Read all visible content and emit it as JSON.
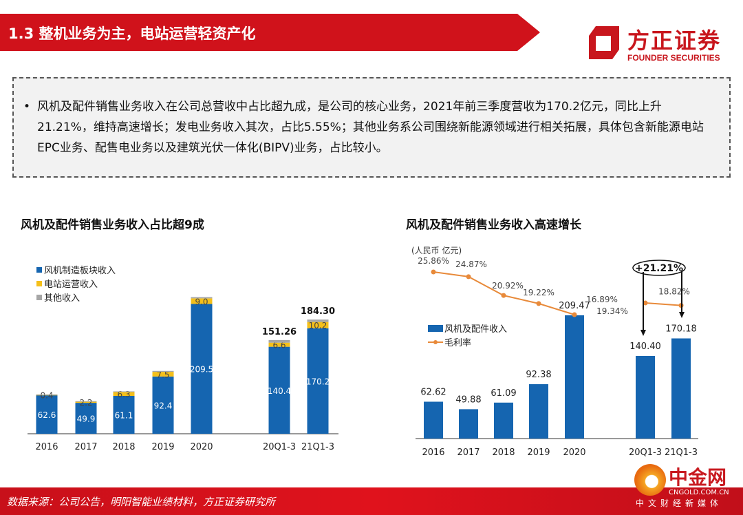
{
  "header": {
    "title": "1.3 整机业务为主，电站运营轻资产化",
    "logo_cn": "方正证券",
    "logo_en": "FOUNDER SECURITIES"
  },
  "summary": {
    "bullet": "•",
    "text": "风机及配件销售业务收入在公司总营收中占比超九成，是公司的核心业务，2021年前三季度营收为170.2亿元，同比上升21.21%，维持高速增长；发电业务收入其次，占比5.55%；其他业务系公司围绕新能源领域进行相关拓展，具体包含新能源电站EPC业务、配售电业务以及建筑光伏一体化(BIPV)业务，占比较小。"
  },
  "footer": {
    "source": "数据来源：公司公告，明阳智能业绩材料，方正证券研究所"
  },
  "watermark": {
    "name": "中金网",
    "url": "CNGOLD.COM.CN",
    "slogan": "中文财经新媒体"
  },
  "colors": {
    "blue": "#1565b0",
    "yellow": "#f5c01a",
    "gray": "#a6a6a6",
    "orange": "#e88a3a",
    "red": "#d0121b"
  },
  "chart_data": [
    {
      "type": "bar",
      "stacked": true,
      "title": "风机及配件销售业务收入占比超9成",
      "categories": [
        "2016",
        "2017",
        "2018",
        "2019",
        "2020",
        "20Q1-3",
        "21Q1-3"
      ],
      "series": [
        {
          "name": "风机制造板块收入",
          "color": "#1565b0",
          "values": [
            62.6,
            49.9,
            61.1,
            92.4,
            209.5,
            140.4,
            170.2
          ],
          "labels": [
            "62.6",
            "49.9",
            "61.1",
            "92.4",
            "209.5",
            "140.4",
            "170.2"
          ]
        },
        {
          "name": "电站运营收入",
          "color": "#f5c01a",
          "values": [
            0.4,
            2.2,
            6.3,
            7.5,
            9.0,
            6.6,
            10.2
          ],
          "labels": [
            "0.4",
            "2.2",
            "6.3",
            "7.5",
            "9.0",
            "6.6",
            "10.2"
          ]
        },
        {
          "name": "其他收入",
          "color": "#a6a6a6",
          "values": [
            0.5,
            0.5,
            1.0,
            1.5,
            2.0,
            4.26,
            3.9
          ]
        }
      ],
      "totals": [
        null,
        null,
        null,
        null,
        null,
        "151.26",
        "184.30"
      ],
      "legend": "top-left",
      "grid": false
    },
    {
      "type": "bar+line",
      "title": "风机及配件销售业务收入高速增长",
      "unit": "(人民币 亿元)",
      "categories": [
        "2016",
        "2017",
        "2018",
        "2019",
        "2020",
        "20Q1-3",
        "21Q1-3"
      ],
      "series": [
        {
          "name": "风机及配件收入",
          "type": "bar",
          "color": "#1565b0",
          "values": [
            62.62,
            49.88,
            61.09,
            92.38,
            209.47,
            140.4,
            170.18
          ],
          "labels": [
            "62.62",
            "49.88",
            "61.09",
            "92.38",
            "209.47",
            "140.40",
            "170.18"
          ]
        },
        {
          "name": "毛利率",
          "type": "line",
          "color": "#e88a3a",
          "values": [
            25.86,
            24.87,
            20.92,
            19.22,
            16.89,
            19.34,
            18.82
          ],
          "labels": [
            "25.86%",
            "24.87%",
            "20.92%",
            "19.22%",
            "16.89%",
            "19.34%",
            "18.82%"
          ]
        }
      ],
      "annotation": "+21.21%",
      "legend": "left-middle",
      "grid": false
    }
  ]
}
